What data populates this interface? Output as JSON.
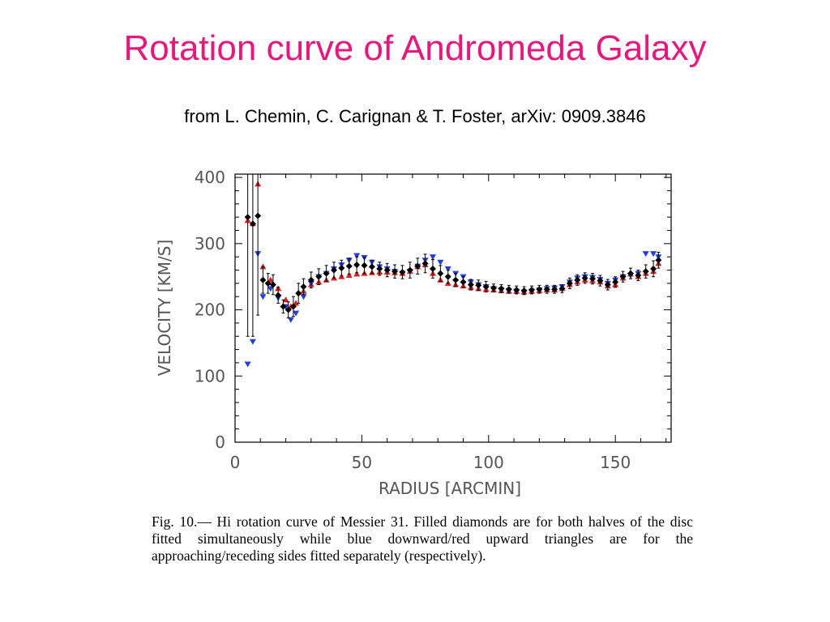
{
  "slide": {
    "title": "Rotation curve of Andromeda Galaxy",
    "subtitle": "from L. Chemin, C. Carignan & T. Foster, arXiv: 0909.3846"
  },
  "caption": "Fig. 10.— Hi rotation curve of Messier 31. Filled diamonds are for both halves of the disc fitted simultaneously while blue downward/red upward triangles are for the approaching/receding sides fitted separately (respectively).",
  "chart_data": {
    "type": "scatter",
    "xlabel": "RADIUS [ARCMIN]",
    "ylabel": "VELOCITY [KM/S]",
    "xlim": [
      0,
      172
    ],
    "ylim": [
      0,
      405
    ],
    "xticks": [
      0,
      50,
      100,
      150
    ],
    "yticks": [
      0,
      100,
      200,
      300,
      400
    ],
    "grid": false,
    "colors": {
      "both": "#000000",
      "approaching": "#1f3fe0",
      "receding": "#e01b1b",
      "axis": "#555555"
    },
    "series": [
      {
        "marker": "diamond",
        "x": [
          5,
          7,
          9,
          11,
          13,
          15,
          17,
          19,
          21,
          23,
          25,
          27,
          30,
          33,
          36,
          39,
          42,
          45,
          48,
          51,
          54,
          57,
          60,
          63,
          66,
          69,
          72,
          75,
          78,
          81,
          84,
          87,
          90,
          93,
          96,
          99,
          102,
          105,
          108,
          111,
          114,
          117,
          120,
          123,
          126,
          129,
          132,
          135,
          138,
          141,
          144,
          147,
          150,
          153,
          156,
          159,
          162,
          165,
          167
        ],
        "y": [
          340,
          330,
          342,
          245,
          240,
          238,
          222,
          205,
          200,
          205,
          225,
          235,
          245,
          250,
          255,
          260,
          263,
          266,
          268,
          267,
          265,
          262,
          260,
          258,
          257,
          260,
          266,
          270,
          262,
          255,
          250,
          245,
          242,
          238,
          237,
          235,
          233,
          232,
          231,
          230,
          229,
          230,
          231,
          231,
          231,
          232,
          240,
          245,
          248,
          247,
          244,
          238,
          242,
          250,
          255,
          252,
          258,
          262,
          275
        ],
        "err": [
          180,
          170,
          150,
          20,
          15,
          15,
          12,
          10,
          12,
          15,
          15,
          12,
          12,
          12,
          12,
          12,
          12,
          12,
          12,
          12,
          10,
          10,
          10,
          10,
          10,
          12,
          12,
          14,
          14,
          12,
          10,
          10,
          8,
          8,
          8,
          8,
          6,
          6,
          6,
          6,
          6,
          6,
          6,
          6,
          6,
          6,
          8,
          8,
          8,
          8,
          8,
          8,
          8,
          8,
          8,
          8,
          10,
          12,
          12
        ]
      },
      {
        "name": "approaching",
        "marker": "triangle-down",
        "x": [
          5,
          7,
          9,
          11,
          14,
          17,
          20,
          22,
          24,
          27,
          30,
          33,
          36,
          39,
          42,
          45,
          48,
          51,
          54,
          57,
          60,
          63,
          66,
          69,
          72,
          75,
          78,
          81,
          84,
          87,
          90,
          93,
          96,
          99,
          102,
          105,
          108,
          111,
          114,
          117,
          120,
          123,
          126,
          129,
          132,
          135,
          138,
          141,
          144,
          147,
          150,
          153,
          156,
          159,
          162,
          165,
          167
        ],
        "y": [
          118,
          152,
          285,
          220,
          232,
          218,
          205,
          185,
          195,
          220,
          240,
          250,
          255,
          262,
          268,
          275,
          282,
          279,
          272,
          265,
          262,
          258,
          255,
          258,
          266,
          275,
          280,
          272,
          262,
          255,
          250,
          242,
          238,
          235,
          232,
          230,
          229,
          228,
          227,
          228,
          230,
          232,
          233,
          235,
          242,
          248,
          250,
          249,
          246,
          240,
          245,
          250,
          252,
          255,
          285,
          285,
          280
        ]
      },
      {
        "name": "receding",
        "marker": "triangle-up",
        "x": [
          5,
          7,
          9,
          11,
          14,
          17,
          20,
          22,
          24,
          27,
          30,
          33,
          36,
          39,
          42,
          45,
          48,
          51,
          54,
          57,
          60,
          63,
          66,
          69,
          72,
          75,
          78,
          81,
          84,
          87,
          90,
          93,
          96,
          99,
          102,
          105,
          108,
          111,
          114,
          117,
          120,
          123,
          126,
          129,
          132,
          135,
          138,
          141,
          144,
          147,
          150,
          153,
          156,
          159,
          162,
          165,
          167
        ],
        "y": [
          335,
          330,
          390,
          265,
          245,
          232,
          215,
          205,
          210,
          228,
          238,
          242,
          245,
          248,
          250,
          252,
          254,
          255,
          256,
          257,
          257,
          256,
          255,
          258,
          265,
          268,
          255,
          245,
          240,
          238,
          236,
          234,
          232,
          231,
          230,
          229,
          228,
          228,
          227,
          228,
          229,
          230,
          230,
          232,
          238,
          242,
          245,
          244,
          242,
          236,
          238,
          248,
          254,
          250,
          255,
          258,
          270
        ]
      }
    ]
  }
}
